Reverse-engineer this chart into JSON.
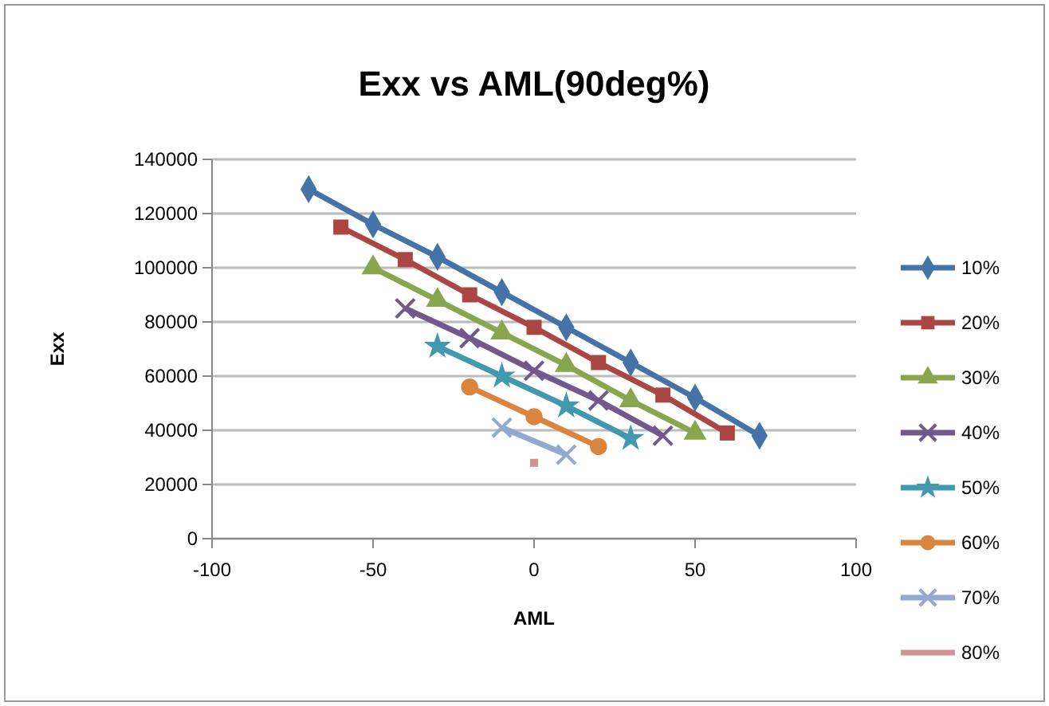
{
  "chart_data": {
    "type": "line",
    "title": "Exx  vs AML(90deg%)",
    "xlabel": "AML",
    "ylabel": "Exx",
    "xlim": [
      -100,
      100
    ],
    "xticks": [
      -100,
      -50,
      0,
      50,
      100
    ],
    "ylim": [
      0,
      140000
    ],
    "yticks": [
      0,
      20000,
      40000,
      60000,
      80000,
      100000,
      120000,
      140000
    ],
    "grid": "y",
    "legend": "right",
    "line_style": "solid",
    "series": [
      {
        "name": "10%",
        "color": "#4572a7",
        "marker": "diamond",
        "x": [
          -70,
          -50,
          -30,
          -10,
          10,
          30,
          50,
          70
        ],
        "values": [
          129000,
          116000,
          104000,
          91000,
          78000,
          65000,
          52000,
          38000
        ]
      },
      {
        "name": "20%",
        "color": "#aa4643",
        "marker": "square",
        "x": [
          -60,
          -40,
          -20,
          0,
          20,
          40,
          60
        ],
        "values": [
          115000,
          103000,
          90000,
          78000,
          65000,
          53000,
          39000
        ]
      },
      {
        "name": "30%",
        "color": "#89a54e",
        "marker": "triangle",
        "x": [
          -50,
          -30,
          -10,
          10,
          30,
          50
        ],
        "values": [
          100000,
          88000,
          76000,
          64000,
          51000,
          39000
        ]
      },
      {
        "name": "40%",
        "color": "#71588f",
        "marker": "cross",
        "x": [
          -40,
          -20,
          0,
          20,
          40
        ],
        "values": [
          85000,
          74000,
          62000,
          51000,
          38000
        ]
      },
      {
        "name": "50%",
        "color": "#4198af",
        "marker": "star",
        "x": [
          -30,
          -10,
          10,
          30
        ],
        "values": [
          71000,
          60000,
          49000,
          37000
        ]
      },
      {
        "name": "60%",
        "color": "#db843d",
        "marker": "circle",
        "x": [
          -20,
          0,
          20
        ],
        "values": [
          56000,
          45000,
          34000
        ]
      },
      {
        "name": "70%",
        "color": "#93a9cf",
        "marker": "cross",
        "x": [
          -10,
          10
        ],
        "values": [
          41000,
          31000
        ]
      },
      {
        "name": "80%",
        "color": "#d19392",
        "marker": "square",
        "x": [
          0
        ],
        "values": [
          28000
        ]
      }
    ]
  }
}
